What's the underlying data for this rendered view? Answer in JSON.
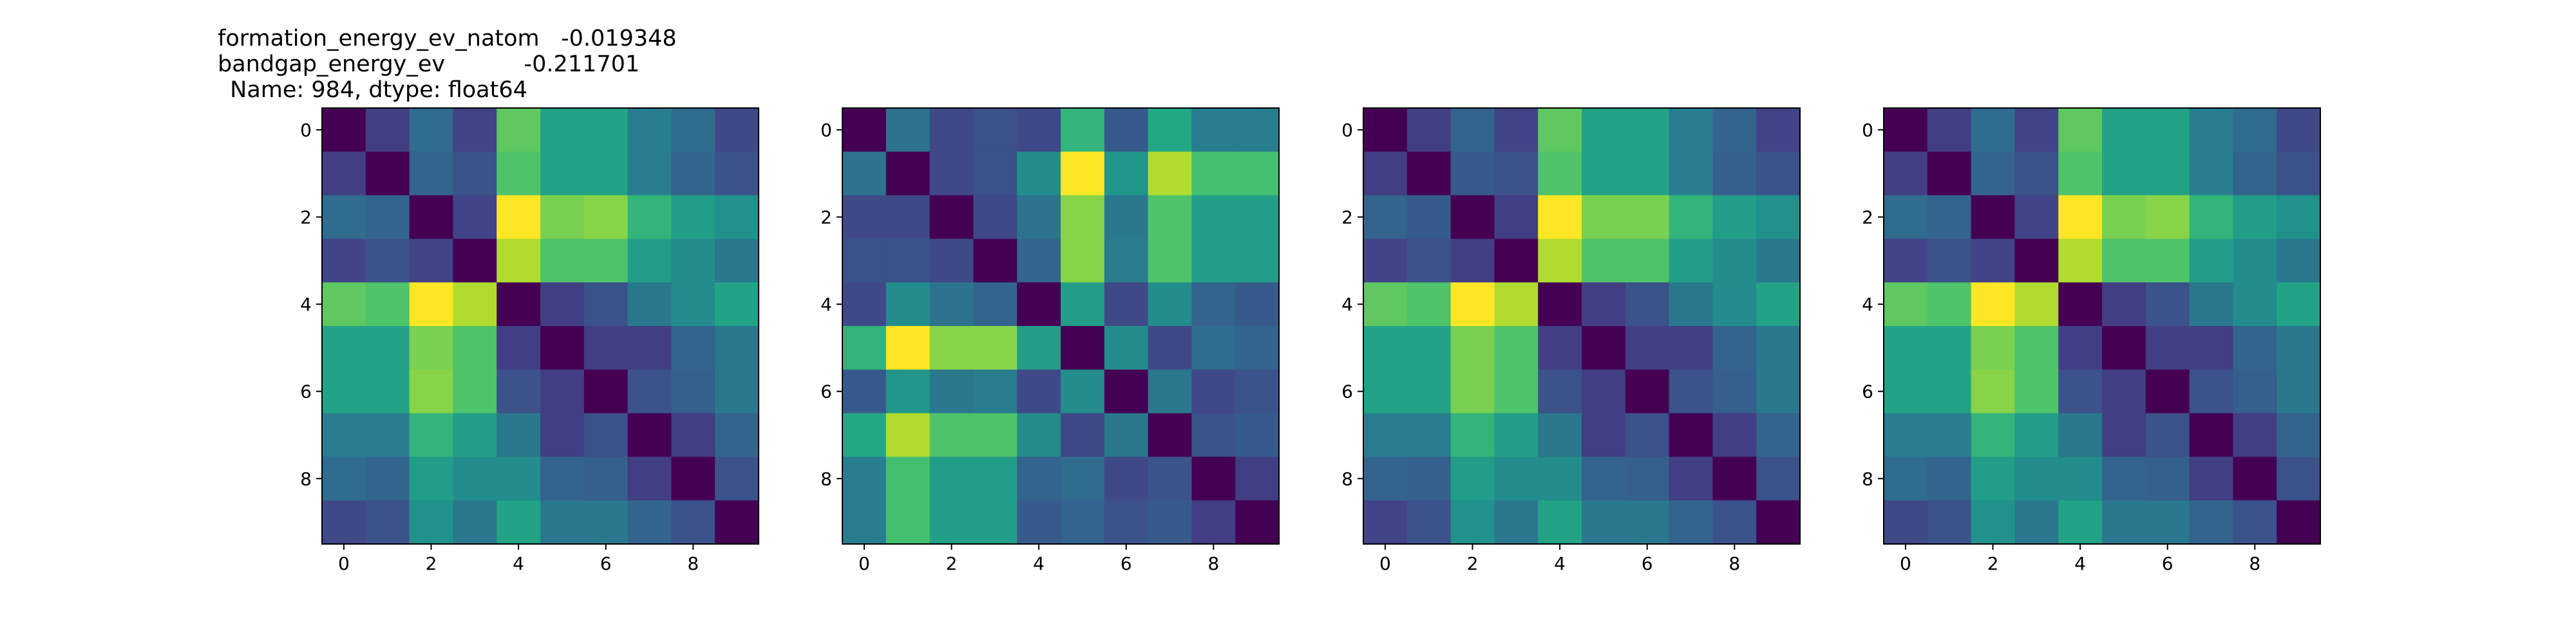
{
  "title_lines": [
    "formation_energy_ev_natom   -0.019348",
    "bandgap_energy_ev           -0.211701",
    "Name: 984, dtype: float64"
  ],
  "chart_data": [
    {
      "type": "heatmap",
      "colormap": "viridis",
      "vmin": 0.0,
      "vmax": 1.0,
      "x_ticks": [
        0,
        2,
        4,
        6,
        8
      ],
      "y_ticks": [
        0,
        2,
        4,
        6,
        8
      ],
      "values": [
        [
          0.0,
          0.18,
          0.35,
          0.2,
          0.75,
          0.58,
          0.58,
          0.42,
          0.35,
          0.22
        ],
        [
          0.18,
          0.0,
          0.32,
          0.25,
          0.72,
          0.58,
          0.58,
          0.42,
          0.32,
          0.25
        ],
        [
          0.35,
          0.32,
          0.0,
          0.2,
          1.0,
          0.8,
          0.82,
          0.65,
          0.55,
          0.5
        ],
        [
          0.2,
          0.25,
          0.2,
          0.0,
          0.88,
          0.72,
          0.72,
          0.55,
          0.48,
          0.4
        ],
        [
          0.75,
          0.72,
          1.0,
          0.88,
          0.0,
          0.18,
          0.25,
          0.4,
          0.48,
          0.58
        ],
        [
          0.58,
          0.58,
          0.8,
          0.72,
          0.18,
          0.0,
          0.18,
          0.18,
          0.32,
          0.4
        ],
        [
          0.58,
          0.58,
          0.82,
          0.72,
          0.25,
          0.18,
          0.0,
          0.25,
          0.3,
          0.4
        ],
        [
          0.42,
          0.42,
          0.65,
          0.55,
          0.4,
          0.18,
          0.25,
          0.0,
          0.18,
          0.32
        ],
        [
          0.35,
          0.32,
          0.55,
          0.48,
          0.48,
          0.32,
          0.3,
          0.18,
          0.0,
          0.25
        ],
        [
          0.22,
          0.25,
          0.5,
          0.4,
          0.58,
          0.4,
          0.4,
          0.32,
          0.25,
          0.0
        ]
      ]
    },
    {
      "type": "heatmap",
      "colormap": "viridis",
      "vmin": 0.0,
      "vmax": 1.0,
      "x_ticks": [
        0,
        2,
        4,
        6,
        8
      ],
      "y_ticks": [
        0,
        2,
        4,
        6,
        8
      ],
      "values": [
        [
          0.0,
          0.38,
          0.22,
          0.25,
          0.22,
          0.65,
          0.28,
          0.6,
          0.42,
          0.42
        ],
        [
          0.38,
          0.0,
          0.22,
          0.25,
          0.48,
          1.0,
          0.52,
          0.88,
          0.7,
          0.7
        ],
        [
          0.22,
          0.22,
          0.0,
          0.22,
          0.38,
          0.82,
          0.4,
          0.72,
          0.55,
          0.55
        ],
        [
          0.25,
          0.25,
          0.22,
          0.0,
          0.32,
          0.82,
          0.42,
          0.72,
          0.55,
          0.55
        ],
        [
          0.22,
          0.48,
          0.38,
          0.32,
          0.0,
          0.55,
          0.22,
          0.48,
          0.32,
          0.28
        ],
        [
          0.65,
          1.0,
          0.82,
          0.82,
          0.55,
          0.0,
          0.48,
          0.22,
          0.35,
          0.32
        ],
        [
          0.28,
          0.52,
          0.4,
          0.42,
          0.22,
          0.48,
          0.0,
          0.4,
          0.22,
          0.25
        ],
        [
          0.6,
          0.88,
          0.72,
          0.72,
          0.48,
          0.22,
          0.4,
          0.0,
          0.25,
          0.28
        ],
        [
          0.42,
          0.7,
          0.55,
          0.55,
          0.32,
          0.35,
          0.22,
          0.25,
          0.0,
          0.18
        ],
        [
          0.42,
          0.7,
          0.55,
          0.55,
          0.28,
          0.32,
          0.25,
          0.28,
          0.18,
          0.0
        ]
      ]
    },
    {
      "type": "heatmap",
      "colormap": "viridis",
      "vmin": 0.0,
      "vmax": 1.0,
      "x_ticks": [
        0,
        2,
        4,
        6,
        8
      ],
      "y_ticks": [
        0,
        2,
        4,
        6,
        8
      ],
      "values": [
        [
          0.0,
          0.18,
          0.32,
          0.2,
          0.75,
          0.58,
          0.58,
          0.42,
          0.32,
          0.2
        ],
        [
          0.18,
          0.0,
          0.28,
          0.25,
          0.72,
          0.58,
          0.58,
          0.42,
          0.3,
          0.25
        ],
        [
          0.32,
          0.28,
          0.0,
          0.18,
          1.0,
          0.8,
          0.8,
          0.65,
          0.55,
          0.5
        ],
        [
          0.2,
          0.25,
          0.18,
          0.0,
          0.88,
          0.72,
          0.72,
          0.55,
          0.48,
          0.4
        ],
        [
          0.75,
          0.72,
          1.0,
          0.88,
          0.0,
          0.18,
          0.25,
          0.4,
          0.48,
          0.58
        ],
        [
          0.58,
          0.58,
          0.8,
          0.72,
          0.18,
          0.0,
          0.18,
          0.18,
          0.32,
          0.4
        ],
        [
          0.58,
          0.58,
          0.8,
          0.72,
          0.25,
          0.18,
          0.0,
          0.25,
          0.3,
          0.4
        ],
        [
          0.42,
          0.42,
          0.65,
          0.55,
          0.4,
          0.18,
          0.25,
          0.0,
          0.18,
          0.32
        ],
        [
          0.32,
          0.3,
          0.55,
          0.48,
          0.48,
          0.32,
          0.3,
          0.18,
          0.0,
          0.25
        ],
        [
          0.2,
          0.25,
          0.5,
          0.4,
          0.58,
          0.4,
          0.4,
          0.32,
          0.25,
          0.0
        ]
      ]
    },
    {
      "type": "heatmap",
      "colormap": "viridis",
      "vmin": 0.0,
      "vmax": 1.0,
      "x_ticks": [
        0,
        2,
        4,
        6,
        8
      ],
      "y_ticks": [
        0,
        2,
        4,
        6,
        8
      ],
      "values": [
        [
          0.0,
          0.18,
          0.35,
          0.2,
          0.75,
          0.58,
          0.58,
          0.42,
          0.35,
          0.22
        ],
        [
          0.18,
          0.0,
          0.32,
          0.25,
          0.72,
          0.58,
          0.58,
          0.42,
          0.32,
          0.25
        ],
        [
          0.35,
          0.32,
          0.0,
          0.2,
          1.0,
          0.8,
          0.82,
          0.65,
          0.55,
          0.5
        ],
        [
          0.2,
          0.25,
          0.2,
          0.0,
          0.88,
          0.72,
          0.72,
          0.55,
          0.48,
          0.4
        ],
        [
          0.75,
          0.72,
          1.0,
          0.88,
          0.0,
          0.18,
          0.25,
          0.4,
          0.48,
          0.58
        ],
        [
          0.58,
          0.58,
          0.8,
          0.72,
          0.18,
          0.0,
          0.18,
          0.18,
          0.32,
          0.4
        ],
        [
          0.58,
          0.58,
          0.82,
          0.72,
          0.25,
          0.18,
          0.0,
          0.25,
          0.3,
          0.4
        ],
        [
          0.42,
          0.42,
          0.65,
          0.55,
          0.4,
          0.18,
          0.25,
          0.0,
          0.18,
          0.32
        ],
        [
          0.35,
          0.32,
          0.55,
          0.48,
          0.48,
          0.32,
          0.3,
          0.18,
          0.0,
          0.25
        ],
        [
          0.22,
          0.25,
          0.5,
          0.4,
          0.58,
          0.4,
          0.4,
          0.32,
          0.25,
          0.0
        ]
      ]
    }
  ]
}
